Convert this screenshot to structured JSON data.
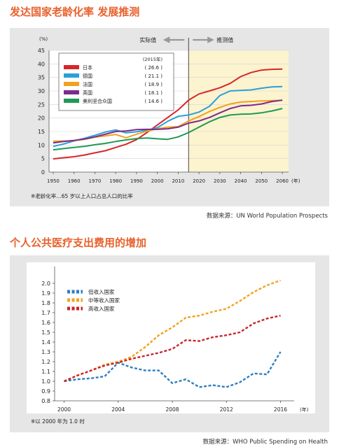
{
  "colors": {
    "title": "#e8612c",
    "panel_bg": "#e6e6e6",
    "forecast_bg": "#fcf3cf"
  },
  "chart1": {
    "title": "发达国家老龄化率  发展推测",
    "source": "数据来源：UN World Population Prospects",
    "note": "※老龄化率…65 岁以上人口占总人口的比率",
    "y_unit": "(%)",
    "x_unit": "(年)",
    "actual_label": "实际值",
    "forecast_label": "推测值",
    "legend_header": "(2015年)",
    "chart_data": {
      "type": "line",
      "x": [
        1950,
        1955,
        1960,
        1965,
        1970,
        1975,
        1980,
        1985,
        1990,
        1995,
        2000,
        2005,
        2010,
        2015,
        2020,
        2025,
        2030,
        2035,
        2040,
        2045,
        2050,
        2055,
        2060
      ],
      "xticks": [
        1950,
        1960,
        1970,
        1980,
        1990,
        2000,
        2010,
        2020,
        2030,
        2040,
        2050,
        2060
      ],
      "yticks": [
        0,
        5,
        10,
        15,
        20,
        25,
        30,
        35,
        40,
        45
      ],
      "ylim": [
        0,
        45
      ],
      "xlim": [
        1948,
        2063
      ],
      "forecast_start": 2015,
      "series": [
        {
          "name": "日本",
          "value_2015": "26.6",
          "color": "#d7262b",
          "values": [
            4.9,
            5.3,
            5.7,
            6.3,
            7.1,
            7.9,
            9.1,
            10.3,
            12.0,
            14.6,
            17.4,
            20.2,
            23.0,
            26.6,
            28.9,
            30.0,
            31.2,
            32.8,
            35.3,
            36.8,
            37.7,
            38.0,
            38.1
          ]
        },
        {
          "name": "德国",
          "value_2015": "21.1",
          "color": "#2aa0d8",
          "values": [
            9.5,
            10.4,
            11.5,
            12.5,
            13.6,
            14.8,
            15.6,
            14.5,
            14.9,
            15.5,
            16.4,
            18.8,
            20.6,
            21.1,
            22.2,
            24.3,
            28.3,
            30.0,
            30.2,
            30.4,
            31.0,
            31.5,
            31.6
          ]
        },
        {
          "name": "法国",
          "value_2015": "18.9",
          "color": "#f2a01e",
          "values": [
            11.4,
            11.5,
            11.6,
            12.1,
            12.9,
            13.4,
            13.9,
            12.7,
            14.0,
            15.1,
            16.0,
            16.6,
            16.8,
            18.9,
            20.5,
            22.4,
            23.9,
            25.2,
            25.9,
            26.1,
            26.3,
            26.4,
            26.5
          ]
        },
        {
          "name": "英国",
          "value_2015": "18.1",
          "color": "#7d2b8b",
          "values": [
            10.8,
            11.3,
            11.7,
            12.2,
            13.0,
            14.0,
            15.0,
            15.2,
            15.7,
            15.8,
            15.8,
            16.0,
            16.6,
            18.1,
            18.9,
            20.2,
            21.9,
            23.5,
            24.5,
            24.7,
            25.2,
            26.1,
            26.6
          ]
        },
        {
          "name": "美利坚合众国",
          "value_2015": "14.6",
          "color": "#1e9a54",
          "values": [
            8.2,
            8.7,
            9.1,
            9.5,
            10.1,
            10.6,
            11.3,
            11.9,
            12.4,
            12.6,
            12.3,
            12.1,
            13.0,
            14.6,
            16.6,
            18.6,
            20.2,
            21.1,
            21.4,
            21.5,
            21.9,
            22.6,
            23.5
          ]
        }
      ]
    }
  },
  "chart2": {
    "title": "个人公共医疗支出费用的增加",
    "source": "数据来源：WHO Public Spending on Health",
    "note": "※以 2000 年为 1.0 时",
    "x_unit": "(年)",
    "chart_data": {
      "type": "line",
      "x": [
        2000,
        2001,
        2002,
        2003,
        2004,
        2005,
        2006,
        2007,
        2008,
        2009,
        2010,
        2011,
        2012,
        2013,
        2014,
        2015,
        2016
      ],
      "xticks": [
        2000,
        2004,
        2008,
        2012,
        2016
      ],
      "yticks": [
        0.8,
        0.9,
        1.0,
        1.1,
        1.2,
        1.3,
        1.4,
        1.5,
        1.6,
        1.7,
        1.8,
        1.9,
        2.0
      ],
      "ylim": [
        0.8,
        2.1
      ],
      "xlim": [
        1999.3,
        2016.7
      ],
      "series": [
        {
          "name": "低收入国家",
          "color": "#2c7fc1",
          "values": [
            1.0,
            1.02,
            1.03,
            1.05,
            1.19,
            1.14,
            1.11,
            1.11,
            0.98,
            1.02,
            0.94,
            0.96,
            0.94,
            0.99,
            1.08,
            1.07,
            1.3
          ]
        },
        {
          "name": "中等收入国家",
          "color": "#f2a21e",
          "values": [
            1.0,
            1.06,
            1.11,
            1.17,
            1.2,
            1.25,
            1.35,
            1.47,
            1.55,
            1.65,
            1.67,
            1.71,
            1.74,
            1.82,
            1.91,
            1.98,
            2.03
          ]
        },
        {
          "name": "高收入国家",
          "color": "#c8262a",
          "values": [
            1.0,
            1.06,
            1.11,
            1.16,
            1.19,
            1.23,
            1.26,
            1.29,
            1.33,
            1.42,
            1.41,
            1.45,
            1.47,
            1.5,
            1.59,
            1.64,
            1.67
          ]
        }
      ]
    }
  }
}
